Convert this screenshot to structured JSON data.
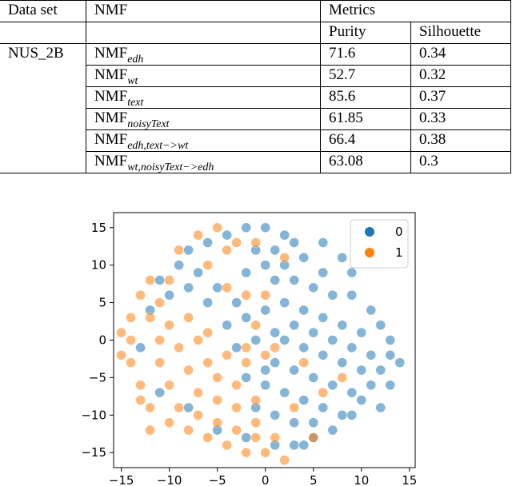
{
  "table": {
    "headers": {
      "dataset": "Data set",
      "nmf": "NMF",
      "metrics": "Metrics",
      "purity": "Purity",
      "silhouette": "Silhouette"
    },
    "dataset_name": "NUS_2B",
    "rows": [
      {
        "base": "NMF",
        "sub": "edh",
        "purity": "71.6",
        "silhouette": "0.34"
      },
      {
        "base": "NMF",
        "sub": "wt",
        "purity": "52.7",
        "silhouette": "0.32"
      },
      {
        "base": "NMF",
        "sub": "text",
        "purity": "85.6",
        "silhouette": "0.37"
      },
      {
        "base": "NMF",
        "sub": "noisyText",
        "purity": "61.85",
        "silhouette": "0.33"
      },
      {
        "base": "NMF",
        "sub": "edh,text−>wt",
        "purity": "66.4",
        "silhouette": "0.38"
      },
      {
        "base": "NMF",
        "sub": "wt,noisyText−>edh",
        "purity": "63.08",
        "silhouette": "0.3"
      }
    ]
  },
  "chart_data": {
    "type": "scatter",
    "title": "",
    "xlabel": "",
    "ylabel": "",
    "xlim": [
      -15.8,
      15.6
    ],
    "ylim": [
      -17.0,
      17.0
    ],
    "xticks": [
      "−15",
      "−10",
      "−5",
      "0",
      "5",
      "10",
      "15"
    ],
    "yticks": [
      "15",
      "10",
      "5",
      "0",
      "−5",
      "−10",
      "−15"
    ],
    "grid": false,
    "legend_position": "top-right",
    "series": [
      {
        "name": "0",
        "color": "#1f77b4",
        "points": [
          [
            -4,
            14
          ],
          [
            -2,
            15
          ],
          [
            0,
            15
          ],
          [
            2,
            14
          ],
          [
            -6,
            13
          ],
          [
            -1,
            12
          ],
          [
            1,
            12
          ],
          [
            3,
            13
          ],
          [
            0,
            10
          ],
          [
            2,
            10
          ],
          [
            4,
            11
          ],
          [
            6,
            9
          ],
          [
            -2,
            9
          ],
          [
            1,
            8
          ],
          [
            3,
            8
          ],
          [
            5,
            7
          ],
          [
            7,
            6
          ],
          [
            9,
            6
          ],
          [
            11,
            4
          ],
          [
            12,
            2
          ],
          [
            13,
            0
          ],
          [
            13,
            -2
          ],
          [
            12,
            -4
          ],
          [
            11,
            -6
          ],
          [
            10,
            -8
          ],
          [
            9,
            -10
          ],
          [
            7,
            -12
          ],
          [
            5,
            -13
          ],
          [
            3,
            -14
          ],
          [
            1,
            -14
          ],
          [
            2,
            5
          ],
          [
            4,
            4
          ],
          [
            6,
            3
          ],
          [
            8,
            2
          ],
          [
            10,
            1
          ],
          [
            3,
            2
          ],
          [
            5,
            1
          ],
          [
            7,
            0
          ],
          [
            9,
            -1
          ],
          [
            11,
            -2
          ],
          [
            2,
            0
          ],
          [
            4,
            -1
          ],
          [
            6,
            -2
          ],
          [
            8,
            -3
          ],
          [
            10,
            -4
          ],
          [
            1,
            -3
          ],
          [
            3,
            -4
          ],
          [
            5,
            -5
          ],
          [
            7,
            -6
          ],
          [
            9,
            -7
          ],
          [
            0,
            -6
          ],
          [
            2,
            -7
          ],
          [
            4,
            -8
          ],
          [
            6,
            -9
          ],
          [
            8,
            -10
          ],
          [
            -1,
            -9
          ],
          [
            1,
            -10
          ],
          [
            3,
            -11
          ],
          [
            5,
            -11
          ],
          [
            -3,
            5
          ],
          [
            -5,
            7
          ],
          [
            -7,
            9
          ],
          [
            -9,
            10
          ],
          [
            -4,
            2
          ],
          [
            -2,
            3
          ],
          [
            0,
            4
          ],
          [
            -6,
            5
          ],
          [
            -8,
            7
          ],
          [
            -10,
            6
          ],
          [
            -12,
            4
          ],
          [
            -3,
            -1
          ],
          [
            -1,
            0
          ],
          [
            1,
            1
          ],
          [
            -2,
            -5
          ],
          [
            0,
            -4
          ],
          [
            6,
            13
          ],
          [
            8,
            11
          ],
          [
            -8,
            12
          ],
          [
            -11,
            8
          ],
          [
            -13,
            -1
          ],
          [
            -11,
            -7
          ],
          [
            -8,
            -9
          ],
          [
            -5,
            -12
          ],
          [
            -2,
            -13
          ],
          [
            4,
            -14
          ],
          [
            12,
            -9
          ],
          [
            13,
            -6
          ],
          [
            14,
            -3
          ],
          [
            9,
            9
          ]
        ]
      },
      {
        "name": "1",
        "color": "#ff7f0e",
        "points": [
          [
            -13,
            6
          ],
          [
            -14,
            3
          ],
          [
            -14,
            0
          ],
          [
            -14,
            -3
          ],
          [
            -13,
            -6
          ],
          [
            -12,
            -9
          ],
          [
            -10,
            -11
          ],
          [
            -8,
            -12
          ],
          [
            -6,
            -13
          ],
          [
            -4,
            -14
          ],
          [
            -2,
            -15
          ],
          [
            0,
            -15
          ],
          [
            2,
            -16
          ],
          [
            -12,
            3
          ],
          [
            -11,
            0
          ],
          [
            -11,
            -3
          ],
          [
            -10,
            -6
          ],
          [
            -9,
            -9
          ],
          [
            -7,
            -10
          ],
          [
            -5,
            -11
          ],
          [
            -3,
            -12
          ],
          [
            -1,
            -13
          ],
          [
            1,
            -13
          ],
          [
            -10,
            2
          ],
          [
            -9,
            -1
          ],
          [
            -8,
            -4
          ],
          [
            -7,
            -7
          ],
          [
            -5,
            -8
          ],
          [
            -3,
            -9
          ],
          [
            -1,
            -11
          ],
          [
            -8,
            3
          ],
          [
            -7,
            0
          ],
          [
            -6,
            -3
          ],
          [
            -5,
            -5
          ],
          [
            -3,
            -6
          ],
          [
            -1,
            -8
          ],
          [
            -6,
            1
          ],
          [
            -4,
            -2
          ],
          [
            -2,
            -3
          ],
          [
            -10,
            8
          ],
          [
            -11,
            5
          ],
          [
            -6,
            10
          ],
          [
            -4,
            12
          ],
          [
            -3,
            13
          ],
          [
            -1,
            13
          ],
          [
            -9,
            12
          ],
          [
            -7,
            14
          ],
          [
            -5,
            15
          ],
          [
            -12,
            -12
          ],
          [
            0,
            6
          ],
          [
            2,
            11
          ],
          [
            -1,
            2
          ],
          [
            1,
            -1
          ],
          [
            -4,
            7
          ],
          [
            -2,
            6
          ],
          [
            0,
            -2
          ],
          [
            5,
            -13
          ],
          [
            -12,
            8
          ],
          [
            -13,
            -8
          ],
          [
            -15,
            1
          ],
          [
            -15,
            -2
          ],
          [
            8,
            -5
          ],
          [
            6,
            -7
          ],
          [
            4,
            -3
          ],
          [
            3,
            -9
          ],
          [
            -2,
            -1
          ]
        ]
      }
    ]
  }
}
